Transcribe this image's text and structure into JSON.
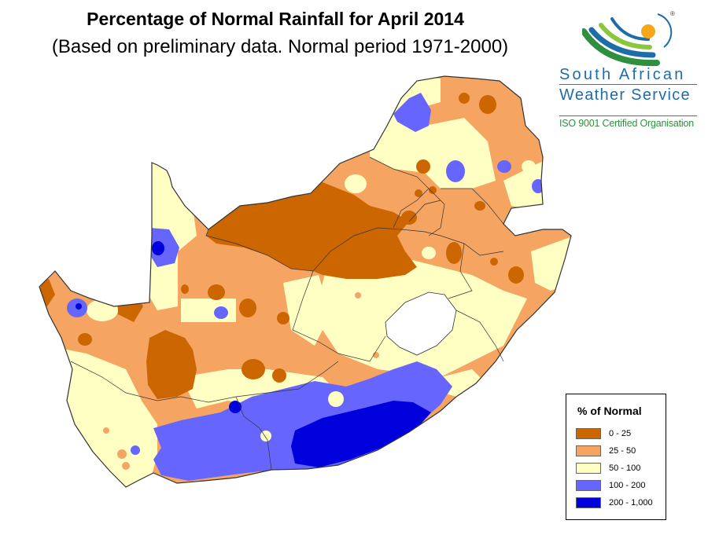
{
  "title": "Percentage of Normal Rainfall for April  2014",
  "subtitle": "(Based on preliminary data. Normal period 1971-2000)",
  "logo": {
    "line1": "South African",
    "line2": "Weather Service",
    "certification": "ISO 9001 Certified Organisation",
    "registered_mark": "®",
    "colors": {
      "blue": "#1e6ca8",
      "green": "#2f8f3f",
      "sun": "#f6a81c"
    }
  },
  "legend": {
    "title": "% of Normal",
    "classes": [
      {
        "label": "0 - 25",
        "color": "#cc6600"
      },
      {
        "label": "25 - 50",
        "color": "#f5a462"
      },
      {
        "label": "50 - 100",
        "color": "#ffffc4"
      },
      {
        "label": "100 - 200",
        "color": "#6666ff"
      },
      {
        "label": "200 - 1,000",
        "color": "#0000dd"
      }
    ]
  },
  "map": {
    "country": "South Africa",
    "boundary_color": "#333333",
    "unshaded_region": "Lesotho"
  }
}
